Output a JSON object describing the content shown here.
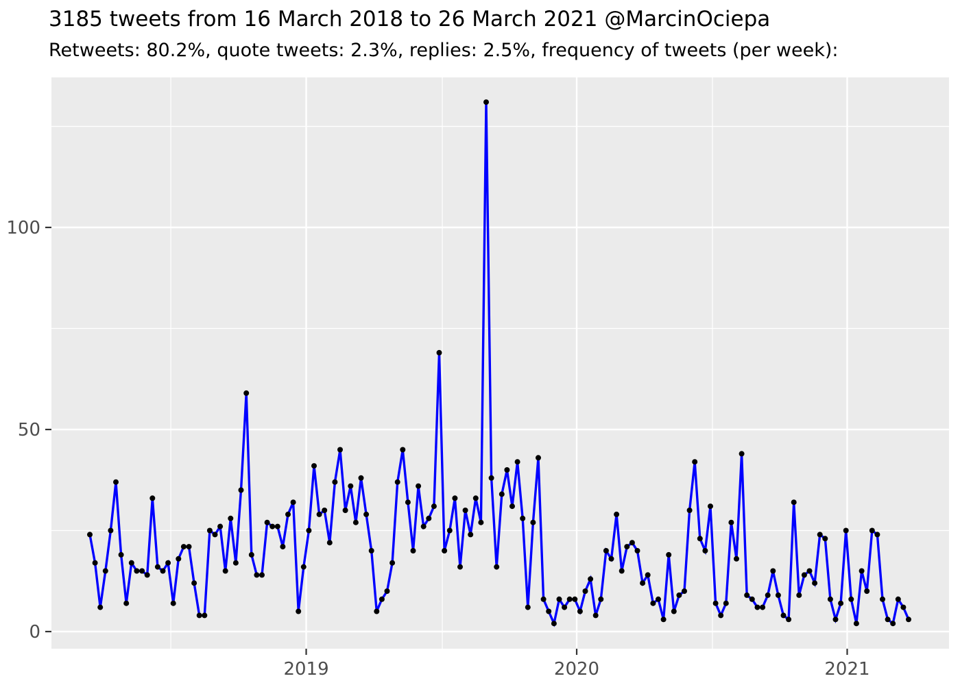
{
  "header": {
    "title": "3185 tweets from 16 March 2018 to 26 March 2021 @MarcinOciepa",
    "subtitle": "Retweets: 80.2%, quote tweets: 2.3%, replies: 2.5%, frequency of tweets (per week):"
  },
  "chart_data": {
    "type": "line",
    "title": "3185 tweets from 16 March 2018 to 26 March 2021 @MarcinOciepa",
    "subtitle": "Retweets: 80.2%, quote tweets: 2.3%, replies: 2.5%, frequency of tweets (per week):",
    "x_start_label": "16 March 2018",
    "x_end_label": "26 March 2021",
    "x_tick_labels": [
      "2019",
      "2020",
      "2021"
    ],
    "y_tick_labels": [
      "0",
      "50",
      "100"
    ],
    "y_ticks": [
      0,
      50,
      100
    ],
    "y_minor_ticks": [
      25,
      75,
      125
    ],
    "ylim": [
      -4,
      137
    ],
    "grid": "on",
    "legend": "none",
    "x_major_index": [
      41.49,
      93.36,
      145.23
    ],
    "x_minor_index": [
      15.52,
      67.59,
      119.39
    ],
    "series": [
      {
        "name": "tweets per week",
        "values": [
          24,
          17,
          6,
          15,
          25,
          37,
          19,
          7,
          17,
          15,
          15,
          14,
          33,
          16,
          15,
          17,
          7,
          18,
          21,
          21,
          12,
          4,
          4,
          25,
          24,
          26,
          15,
          28,
          17,
          35,
          59,
          19,
          14,
          14,
          27,
          26,
          26,
          21,
          29,
          32,
          5,
          16,
          25,
          41,
          29,
          30,
          22,
          37,
          45,
          30,
          36,
          27,
          38,
          29,
          20,
          5,
          8,
          10,
          17,
          37,
          45,
          32,
          20,
          36,
          26,
          28,
          31,
          69,
          20,
          25,
          33,
          16,
          30,
          24,
          33,
          27,
          131,
          38,
          16,
          34,
          40,
          31,
          42,
          28,
          6,
          27,
          43,
          8,
          5,
          2,
          8,
          6,
          8,
          8,
          5,
          10,
          13,
          4,
          8,
          20,
          18,
          29,
          15,
          21,
          22,
          20,
          12,
          14,
          7,
          8,
          3,
          19,
          5,
          9,
          10,
          30,
          42,
          23,
          20,
          31,
          7,
          4,
          7,
          27,
          18,
          44,
          9,
          8,
          6,
          6,
          9,
          15,
          9,
          4,
          3,
          32,
          9,
          14,
          15,
          12,
          24,
          23,
          8,
          3,
          7,
          25,
          8,
          2,
          15,
          10,
          25,
          24,
          8,
          3,
          2,
          8,
          6,
          3
        ]
      }
    ],
    "colors": {
      "line": "#0000FF",
      "point": "#000000",
      "panel": "#EBEBEB",
      "grid": "#FFFFFF",
      "tick_label": "#4D4D4D",
      "tick_mark": "#333333",
      "title": "#000000"
    }
  }
}
